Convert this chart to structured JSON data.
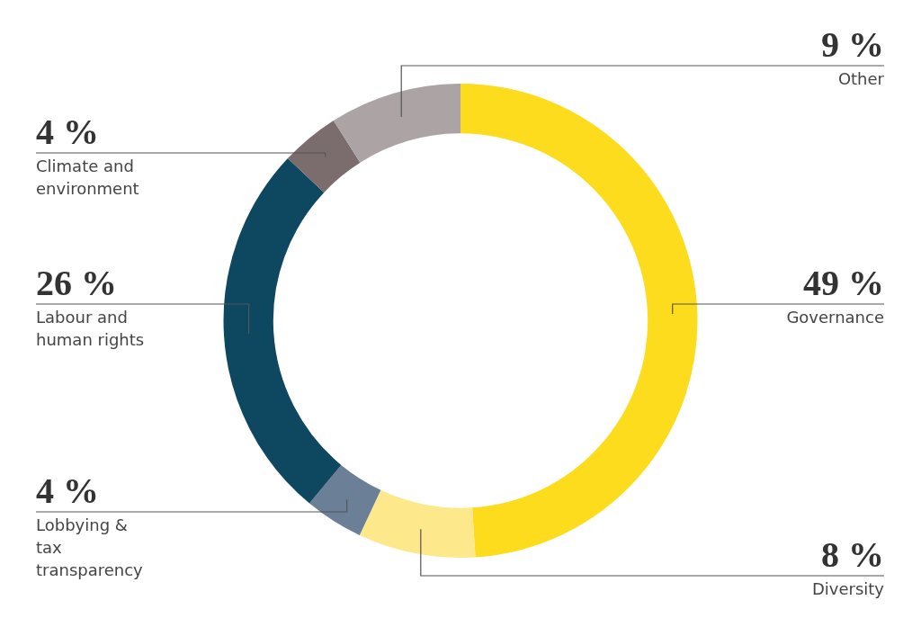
{
  "chart_data": {
    "type": "donut",
    "categories": [
      "Governance",
      "Diversity",
      "Lobbying & tax transparency",
      "Labour and human rights",
      "Climate and environment",
      "Other"
    ],
    "values": [
      49,
      8,
      4,
      26,
      4,
      9
    ],
    "value_labels": [
      "49 %",
      "8 %",
      "4 %",
      "26 %",
      "4 %",
      "9 %"
    ],
    "colors": [
      "#fcdc1c",
      "#fde98c",
      "#6b7f96",
      "#0e4760",
      "#7b6d6e",
      "#aca4a4"
    ],
    "legend": false
  }
}
